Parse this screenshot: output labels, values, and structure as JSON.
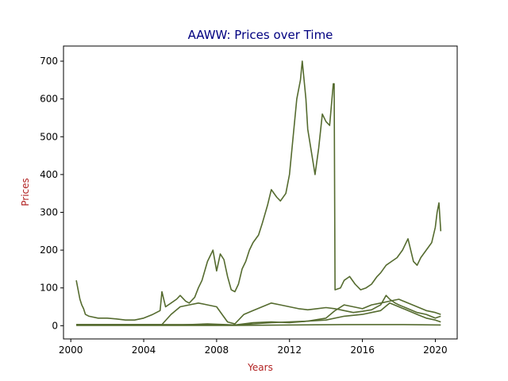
{
  "chart_data": {
    "type": "line",
    "title": "AAWW: Prices over Time",
    "xlabel": "Years",
    "ylabel": "Prices",
    "xlim": [
      1999.6,
      2021.2
    ],
    "ylim": [
      -35,
      740
    ],
    "xticks": [
      2000,
      2004,
      2008,
      2012,
      2016,
      2020
    ],
    "yticks": [
      0,
      100,
      200,
      300,
      400,
      500,
      600,
      700
    ],
    "grid": false,
    "legend": "none",
    "colors": {
      "title": "#000080",
      "axis_label": "#b22222",
      "series": "#556b2f"
    },
    "series": [
      {
        "x": [
          2000.3,
          2000.4,
          2000.5,
          2000.6,
          2000.7,
          2000.8,
          2001.0,
          2001.5,
          2002.0,
          2002.5,
          2003.0,
          2003.5,
          2004.0,
          2004.5,
          2004.9,
          2005.0,
          2005.2,
          2005.5,
          2005.8,
          2006.0,
          2006.3,
          2006.5,
          2006.8,
          2007.0,
          2007.2,
          2007.5,
          2007.8,
          2008.0,
          2008.2,
          2008.4,
          2008.6,
          2008.8,
          2009.0,
          2009.2,
          2009.4,
          2009.6,
          2009.8,
          2010.0,
          2010.3,
          2010.5,
          2010.8,
          2011.0,
          2011.3,
          2011.5,
          2011.8,
          2012.0,
          2012.2,
          2012.4,
          2012.6,
          2012.7,
          2012.9,
          2013.0,
          2013.2,
          2013.4,
          2013.6,
          2013.8,
          2014.0,
          2014.2,
          2014.4,
          2014.45,
          2014.5,
          2014.8,
          2015.0,
          2015.3,
          2015.6,
          2015.9,
          2016.2,
          2016.5,
          2016.8,
          2017.0,
          2017.3,
          2017.6,
          2017.9,
          2018.2,
          2018.5,
          2018.8,
          2019.0,
          2019.2,
          2019.5,
          2019.8,
          2020.0,
          2020.1,
          2020.2,
          2020.3
        ],
        "y": [
          120,
          95,
          70,
          55,
          45,
          30,
          25,
          20,
          20,
          18,
          15,
          15,
          20,
          30,
          40,
          90,
          50,
          60,
          70,
          80,
          65,
          60,
          75,
          100,
          120,
          170,
          200,
          145,
          190,
          175,
          130,
          95,
          90,
          110,
          150,
          170,
          200,
          220,
          240,
          270,
          320,
          360,
          340,
          330,
          350,
          400,
          500,
          600,
          650,
          700,
          600,
          520,
          460,
          400,
          470,
          560,
          540,
          530,
          640,
          640,
          95,
          100,
          120,
          130,
          110,
          95,
          100,
          110,
          130,
          140,
          160,
          170,
          180,
          200,
          230,
          170,
          160,
          180,
          200,
          220,
          260,
          300,
          325,
          250
        ]
      },
      {
        "x": [
          2000.3,
          2001.0,
          2002.0,
          2003.0,
          2004.0,
          2005.0,
          2005.5,
          2006.0,
          2006.5,
          2007.0,
          2007.5,
          2008.0,
          2008.3,
          2008.6,
          2009.0,
          2009.5,
          2010.0,
          2010.5,
          2011.0,
          2011.5,
          2012.0,
          2012.5,
          2013.0,
          2013.5,
          2014.0,
          2014.5,
          2015.0,
          2015.5,
          2016.0,
          2016.5,
          2017.0,
          2017.3,
          2017.5,
          2017.8,
          2018.0,
          2018.5,
          2019.0,
          2019.5,
          2020.0,
          2020.3
        ],
        "y": [
          3,
          3,
          3,
          3,
          3,
          3,
          30,
          50,
          55,
          60,
          55,
          50,
          30,
          10,
          5,
          30,
          40,
          50,
          60,
          55,
          50,
          45,
          42,
          45,
          48,
          45,
          40,
          35,
          38,
          42,
          55,
          80,
          70,
          60,
          55,
          45,
          35,
          30,
          20,
          25
        ]
      },
      {
        "x": [
          2000.3,
          2002.0,
          2004.0,
          2006.0,
          2008.0,
          2008.5,
          2009.0,
          2010.0,
          2011.0,
          2012.0,
          2013.0,
          2014.0,
          2014.5,
          2015.0,
          2015.5,
          2016.0,
          2016.5,
          2017.0,
          2017.5,
          2018.0,
          2018.5,
          2019.0,
          2019.5,
          2020.0,
          2020.3
        ],
        "y": [
          3,
          3,
          3,
          3,
          3,
          2,
          2,
          8,
          10,
          8,
          12,
          20,
          40,
          55,
          50,
          45,
          55,
          60,
          65,
          70,
          60,
          50,
          40,
          35,
          30
        ]
      },
      {
        "x": [
          2000.3,
          2002.0,
          2004.0,
          2006.0,
          2007.5,
          2008.5,
          2009.0,
          2010.0,
          2011.0,
          2012.0,
          2013.0,
          2014.0,
          2015.0,
          2016.0,
          2016.5,
          2017.0,
          2017.5,
          2018.0,
          2018.5,
          2019.0,
          2019.5,
          2020.0,
          2020.3
        ],
        "y": [
          2,
          2,
          2,
          2,
          5,
          3,
          2,
          5,
          8,
          10,
          12,
          15,
          25,
          30,
          35,
          40,
          60,
          50,
          40,
          30,
          20,
          15,
          10
        ]
      },
      {
        "x": [
          2000.3,
          2003.0,
          2006.0,
          2009.0,
          2012.0,
          2015.0,
          2018.0,
          2020.3
        ],
        "y": [
          1,
          1,
          1,
          1,
          2,
          3,
          3,
          2
        ]
      }
    ]
  }
}
